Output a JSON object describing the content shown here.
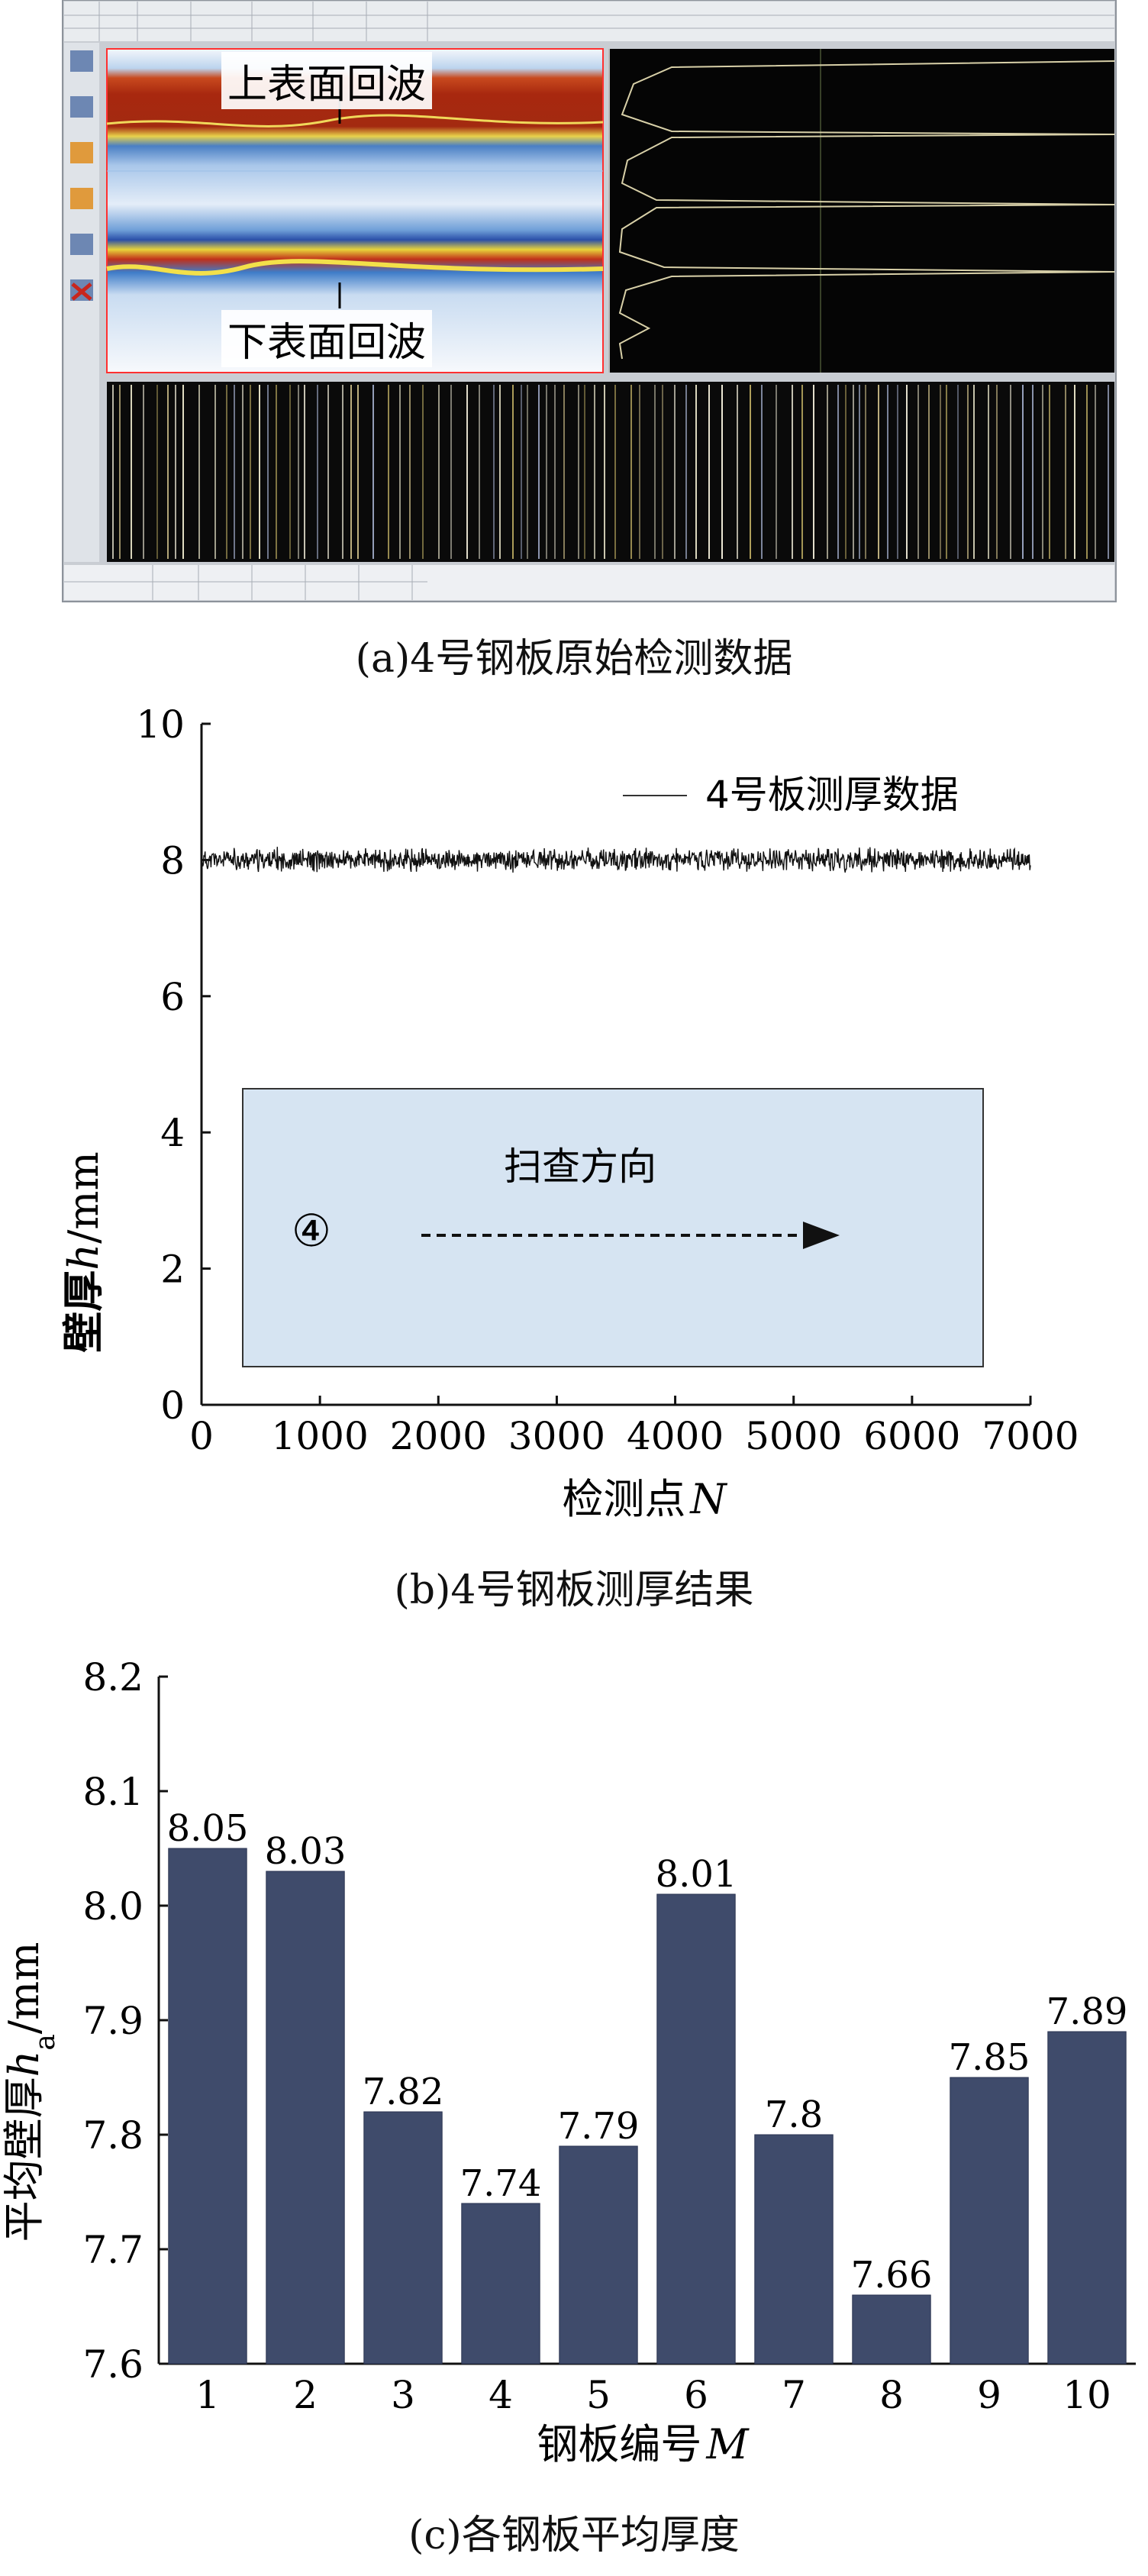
{
  "panel_a": {
    "caption": "(a)4号钢板原始检测数据",
    "label_top": "上表面回波",
    "label_bottom": "下表面回波"
  },
  "panel_b": {
    "caption": "(b)4号钢板测厚结果",
    "legend": "4号板测厚数据",
    "inset_label": "扫查方向",
    "inset_marker": "④"
  },
  "panel_c": {
    "caption": "(c)各钢板平均厚度"
  },
  "chart_data": [
    {
      "type": "line",
      "ylabel_main": "壁厚",
      "ylabel_var": "h",
      "ylabel_unit": "/mm",
      "xlabel_main": "检测点",
      "xlabel_var": "N",
      "xlim": [
        0,
        7000
      ],
      "ylim": [
        0,
        10
      ],
      "x_ticks": [
        "0",
        "1000",
        "2000",
        "3000",
        "4000",
        "5000",
        "6000",
        "7000"
      ],
      "y_ticks": [
        "0",
        "2",
        "4",
        "6",
        "8",
        "10"
      ],
      "series": [
        {
          "name": "4号板测厚数据",
          "x_range": [
            0,
            7000
          ],
          "mean": 8.0,
          "noise_band": [
            7.8,
            8.2
          ]
        }
      ]
    },
    {
      "type": "bar",
      "ylabel_main": "平均壁厚",
      "ylabel_var": "h",
      "ylabel_sub": "a",
      "ylabel_unit": "/mm",
      "xlabel_main": "钢板编号",
      "xlabel_var": "M",
      "categories": [
        "1",
        "2",
        "3",
        "4",
        "5",
        "6",
        "7",
        "8",
        "9",
        "10"
      ],
      "values": [
        8.05,
        8.03,
        7.82,
        7.74,
        7.79,
        8.01,
        7.8,
        7.66,
        7.85,
        7.89
      ],
      "value_labels": [
        "8.05",
        "8.03",
        "7.82",
        "7.74",
        "7.79",
        "8.01",
        "7.8",
        "7.66",
        "7.85",
        "7.89"
      ],
      "ylim": [
        7.6,
        8.2
      ],
      "y_ticks": [
        "7.6",
        "7.7",
        "7.8",
        "7.9",
        "8.0",
        "8.1",
        "8.2"
      ],
      "bar_color": "#3f4b6b"
    }
  ]
}
